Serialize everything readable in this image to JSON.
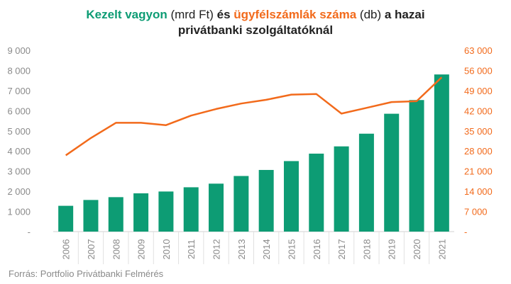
{
  "title": {
    "part1": "Kezelt vagyon",
    "part2": " (mrd Ft) ",
    "part3": "és",
    "part4": "ügyfélszámlák száma",
    "part5": " (db) ",
    "part6": "a hazai",
    "line2": "privátbanki szolgáltatóknál"
  },
  "source": "Forrás: Portfolio Privátbanki Felmérés",
  "colors": {
    "bars": "#0d9c74",
    "line": "#f26a1b",
    "left_axis": "#8a8a8a",
    "right_axis": "#f26a1b",
    "grid": "#e6e6e6"
  },
  "chart_data": {
    "type": "bar",
    "categories": [
      "2006",
      "2007",
      "2008",
      "2009",
      "2010",
      "2011",
      "2012",
      "2013",
      "2014",
      "2015",
      "2016",
      "2017",
      "2018",
      "2019",
      "2020",
      "2021"
    ],
    "series": [
      {
        "name": "Kezelt vagyon",
        "type": "bar",
        "axis": "left",
        "values": [
          1280,
          1570,
          1710,
          1900,
          1990,
          2200,
          2380,
          2760,
          3060,
          3500,
          3870,
          4230,
          4860,
          5850,
          6530,
          7800
        ]
      },
      {
        "name": "ügyfélszámlák száma",
        "type": "line",
        "axis": "right",
        "values": [
          26500,
          32500,
          37800,
          37800,
          37000,
          40300,
          42600,
          44500,
          45800,
          47600,
          47800,
          41000,
          43000,
          45000,
          45300,
          53600
        ]
      }
    ],
    "left_axis": {
      "ylim": [
        0,
        9000
      ],
      "ticks": [
        "-",
        "1 000",
        "2 000",
        "3 000",
        "4 000",
        "5 000",
        "6 000",
        "7 000",
        "8 000",
        "9 000"
      ]
    },
    "right_axis": {
      "ylim": [
        0,
        63000
      ],
      "ticks": [
        "-",
        "7 000",
        "14 000",
        "21 000",
        "28 000",
        "35 000",
        "42 000",
        "49 000",
        "56 000",
        "63 000"
      ]
    }
  }
}
